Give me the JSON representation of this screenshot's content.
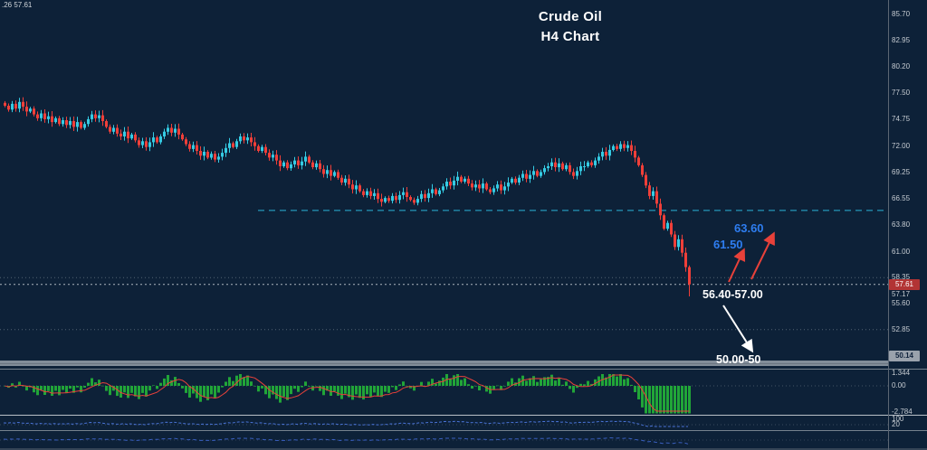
{
  "window": {
    "title_line1": "Crude Oil",
    "title_line2": "H4 Chart",
    "instrument_info": ".26 57.61"
  },
  "annotations": {
    "target_high": "63.60",
    "target_mid": "61.50",
    "breakdown_zone": "56.40-57.00",
    "support_target": "50.00-50"
  },
  "colors": {
    "background": "#0d2138",
    "bull": "#35cbe3",
    "bear": "#ef3f39",
    "histogram": "#21a538",
    "signal_line": "#e8413a",
    "resistance_dashed": "#2bb3d6",
    "annotation_blue": "#2e7df0",
    "annotation_white": "#ffffff",
    "badge_bid": "#b23434",
    "badge_level": "#9aa2ac",
    "oscillator_blue": "#4a74d8"
  },
  "chart_data": {
    "type": "candlestick",
    "title": "Crude Oil H4 Chart",
    "symbol": "Crude Oil",
    "timeframe": "H4",
    "price_axis": {
      "ticks": [
        "85.70",
        "82.95",
        "80.20",
        "77.50",
        "74.75",
        "72.00",
        "69.25",
        "66.55",
        "63.80",
        "61.00",
        "58.35",
        "55.60",
        "52.85"
      ],
      "badges": [
        {
          "label": "57.61",
          "kind": "bid"
        },
        {
          "label": "57.17",
          "kind": "below-bid"
        },
        {
          "label": "50.14",
          "kind": "level"
        }
      ],
      "range": [
        48.9,
        87.2
      ]
    },
    "candles": {
      "first_open": 76.5,
      "closes": [
        76.2,
        75.8,
        76.4,
        75.9,
        76.6,
        76.1,
        75.6,
        75.9,
        75.3,
        74.9,
        75.4,
        74.8,
        75.1,
        74.5,
        74.9,
        74.3,
        74.7,
        74.2,
        74.6,
        74.0,
        74.5,
        73.9,
        74.3,
        74.8,
        75.3,
        74.9,
        75.2,
        74.6,
        74.0,
        73.5,
        73.9,
        73.3,
        73.0,
        73.5,
        72.8,
        73.2,
        72.6,
        72.1,
        72.5,
        71.9,
        72.4,
        72.9,
        72.4,
        73.0,
        73.5,
        73.9,
        73.4,
        73.8,
        73.2,
        72.7,
        72.2,
        71.7,
        72.1,
        71.5,
        71.0,
        71.4,
        70.8,
        71.2,
        70.6,
        70.9,
        71.3,
        71.8,
        72.3,
        71.9,
        72.5,
        73.0,
        72.6,
        72.9,
        72.4,
        72.0,
        71.5,
        71.9,
        71.3,
        70.8,
        71.1,
        70.5,
        69.9,
        70.3,
        69.7,
        70.1,
        70.5,
        70.0,
        70.4,
        70.9,
        70.3,
        69.8,
        70.2,
        69.6,
        69.1,
        69.5,
        68.9,
        69.3,
        68.7,
        68.2,
        68.6,
        68.0,
        67.5,
        67.9,
        67.3,
        66.9,
        67.3,
        66.8,
        67.1,
        66.5,
        66.2,
        66.6,
        66.3,
        66.8,
        66.4,
        66.9,
        67.2,
        66.7,
        66.4,
        66.1,
        66.5,
        67.0,
        66.6,
        67.1,
        67.5,
        67.0,
        67.4,
        67.8,
        68.3,
        67.9,
        68.4,
        68.8,
        68.3,
        68.6,
        68.1,
        67.7,
        68.0,
        67.6,
        68.1,
        67.5,
        67.2,
        67.6,
        68.0,
        67.4,
        67.8,
        68.2,
        68.6,
        68.2,
        68.7,
        69.1,
        68.6,
        69.0,
        69.4,
        68.9,
        69.3,
        69.7,
        69.9,
        70.3,
        69.8,
        70.2,
        69.6,
        70.0,
        69.3,
        68.9,
        69.4,
        69.9,
        69.9,
        70.3,
        70.0,
        70.5,
        70.9,
        71.4,
        71.0,
        71.6,
        72.0,
        71.7,
        72.2,
        71.8,
        72.1,
        71.5,
        70.8,
        70.0,
        69.0,
        67.9,
        66.8,
        67.3,
        66.0,
        64.8,
        63.4,
        64.0,
        62.8,
        61.5,
        62.3,
        60.9,
        59.4,
        57.6
      ],
      "last_low": 56.35
    },
    "levels": {
      "resistance_dashed": 65.3,
      "current_price_dotted": 57.61,
      "minor_dotted": [
        58.3,
        52.9
      ],
      "support_band": [
        50.0,
        50.14
      ]
    },
    "annotation_values": {
      "upside_targets": [
        61.5,
        63.6
      ],
      "breakdown_zone": [
        56.4,
        57.0
      ],
      "downside_target_zone": [
        50.0,
        50.14
      ]
    },
    "indicator_panels": [
      {
        "name": "macd-histogram",
        "ticks": [
          "1.344",
          "0.00",
          "-2.784"
        ]
      },
      {
        "name": "oscillator-strip",
        "ticks": [
          "100",
          "20"
        ]
      },
      {
        "name": "momentum-line",
        "ticks": []
      }
    ]
  }
}
